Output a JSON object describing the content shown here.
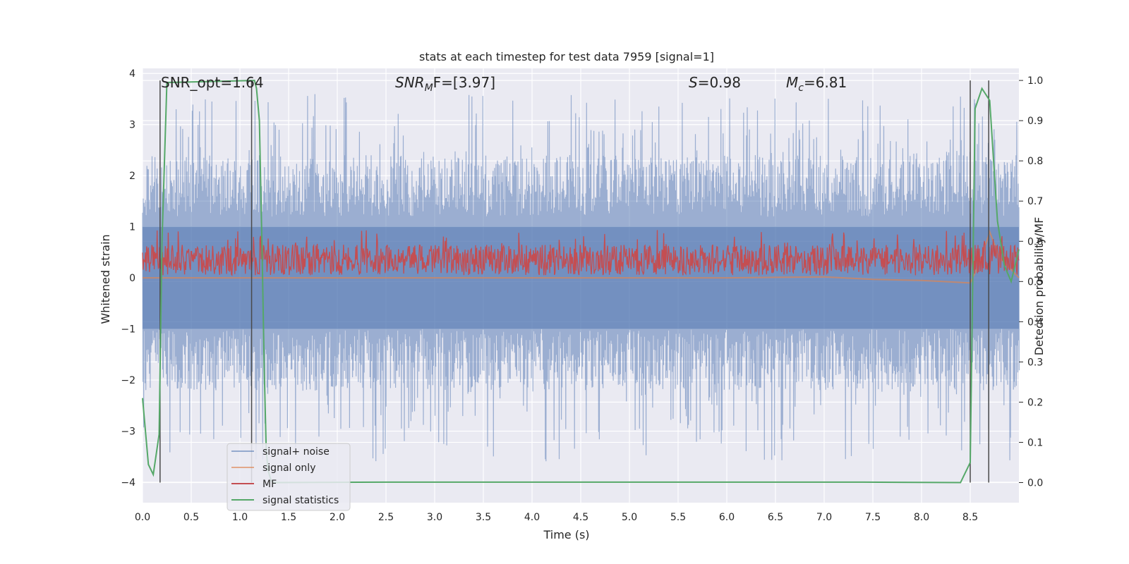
{
  "chart_data": {
    "type": "line",
    "title": "stats at each timestep for test data 7959 [signal=1]",
    "xlabel": "Time (s)",
    "ylabel_left": "Whitened strain",
    "ylabel_right": "Detection probability/MF",
    "xlim": [
      0.0,
      9.0
    ],
    "ylim_left": [
      -4.4,
      4.1
    ],
    "ylim_right": [
      -0.05,
      1.03
    ],
    "x_ticks": [
      0.0,
      0.5,
      1.0,
      1.5,
      2.0,
      2.5,
      3.0,
      3.5,
      4.0,
      4.5,
      5.0,
      5.5,
      6.0,
      6.5,
      7.0,
      7.5,
      8.0,
      8.5
    ],
    "x_tick_labels": [
      "0.0",
      "0.5",
      "1.0",
      "1.5",
      "2.0",
      "2.5",
      "3.0",
      "3.5",
      "4.0",
      "4.5",
      "5.0",
      "5.5",
      "6.0",
      "6.5",
      "7.0",
      "7.5",
      "8.0",
      "8.5"
    ],
    "y_left_ticks": [
      -4,
      -3,
      -2,
      -1,
      0,
      1,
      2,
      3,
      4
    ],
    "y_left_tick_labels": [
      "−4",
      "−3",
      "−2",
      "−1",
      "0",
      "1",
      "2",
      "3",
      "4"
    ],
    "y_right_ticks": [
      0.0,
      0.1,
      0.2,
      0.3,
      0.4,
      0.5,
      0.6,
      0.7,
      0.8,
      0.9,
      1.0
    ],
    "y_right_tick_labels": [
      "0.0",
      "0.1",
      "0.2",
      "0.3",
      "0.4",
      "0.5",
      "0.6",
      "0.7",
      "0.8",
      "0.9",
      "1.0"
    ],
    "grid": true,
    "legend_position": "lower-left",
    "colors": {
      "background": "#eaeaf2",
      "noise": "#4c72b0",
      "signal_only": "#dd8452",
      "mf": "#c44e52",
      "stats": "#55a868",
      "vline": "#4a4a4a"
    },
    "annotations": {
      "snr_opt": "SNR_opt=1.64",
      "snr_mf_prefix": "SNR",
      "snr_mf_sub": "M",
      "snr_mf_suffix": "F=[3.97]",
      "s_symbol": "S",
      "s_value": "=0.98",
      "mc_symbol": "M",
      "mc_sub": "c",
      "mc_value": "=6.81"
    },
    "vertical_lines_x": [
      0.18,
      1.12,
      8.5,
      8.69
    ],
    "series": [
      {
        "name": "signal+ noise",
        "axis": "left",
        "description_stats": {
          "upper_envelope_typical": 2.4,
          "upper_peaks_max": 3.8,
          "lower_envelope_typical": -2.1,
          "lower_peaks_min": -4.0,
          "samples": 1200
        }
      },
      {
        "name": "signal only",
        "axis": "left",
        "x": [
          0.0,
          6.0,
          6.5,
          7.0,
          7.5,
          8.0,
          8.3,
          8.5,
          8.6,
          8.7,
          8.8,
          9.0
        ],
        "y": [
          0.0,
          0.0,
          0.01,
          0.02,
          -0.03,
          -0.05,
          -0.08,
          -0.1,
          0.3,
          0.9,
          0.4,
          0.0
        ]
      },
      {
        "name": "MF",
        "axis": "left",
        "description_stats": {
          "baseline": 0.35,
          "band_low": 0.05,
          "band_high": 0.65,
          "peak": 1.0,
          "samples": 1500
        }
      },
      {
        "name": "signal statistics",
        "axis": "right",
        "x": [
          0.0,
          0.06,
          0.11,
          0.17,
          0.2,
          0.25,
          1.15,
          1.17,
          1.2,
          1.23,
          1.25,
          1.27,
          1.29,
          1.32,
          1.35,
          2.5,
          7.4,
          8.4,
          8.5,
          8.55,
          8.62,
          8.7,
          8.78,
          8.85,
          8.92,
          9.0
        ],
        "y": [
          0.21,
          0.045,
          0.02,
          0.12,
          0.6,
          0.995,
          1.0,
          0.98,
          0.9,
          0.55,
          0.28,
          0.08,
          0.03,
          0.005,
          0.0,
          0.001,
          0.001,
          0.0,
          0.05,
          0.93,
          0.98,
          0.95,
          0.65,
          0.54,
          0.5,
          0.58
        ]
      }
    ]
  }
}
